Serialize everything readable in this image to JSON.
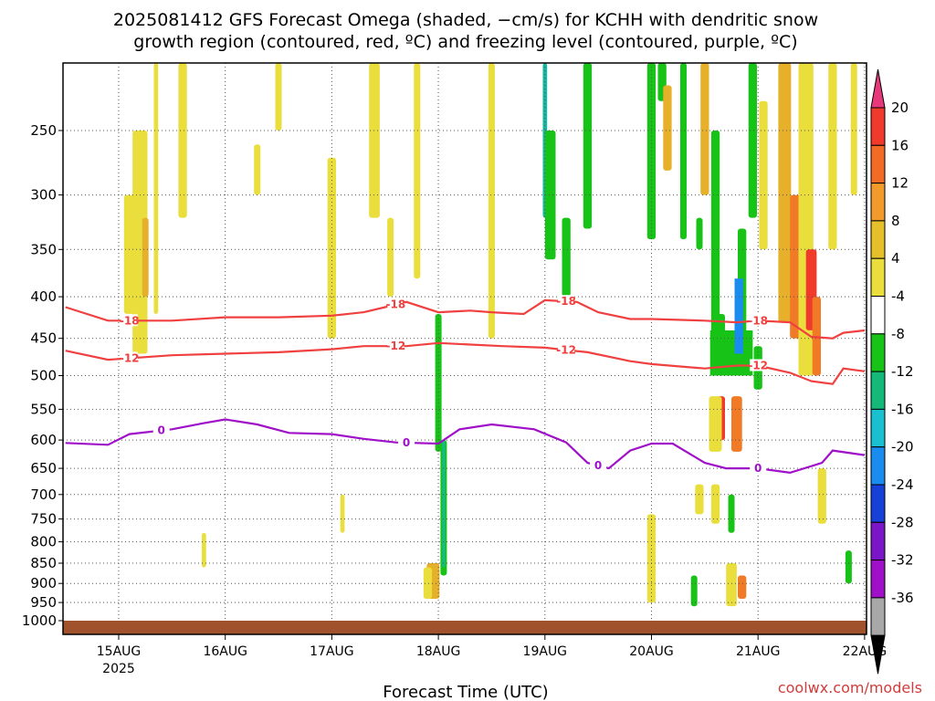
{
  "title_line1": "2025081412 GFS Forecast Omega (shaded, −cm/s) for KCHH with dendritic snow",
  "title_line2": "growth region (contoured, red, ºC) and freezing level (contoured, purple, ºC)",
  "credit": "coolwx.com/models",
  "chart_data": {
    "type": "heatmap",
    "title": "2025081412 GFS Forecast Omega (shaded, −cm/s) for KCHH with dendritic snow growth region (contoured, red, ºC) and freezing level (contoured, purple, ºC)",
    "xlabel": "Forecast Time (UTC)",
    "ylabel": "",
    "x_ticks": [
      "15AUG",
      "16AUG",
      "17AUG",
      "18AUG",
      "19AUG",
      "20AUG",
      "21AUG",
      "22AUG"
    ],
    "x_year_label": "2025",
    "y_ticks": [
      250,
      300,
      350,
      400,
      450,
      500,
      550,
      600,
      650,
      700,
      750,
      800,
      850,
      900,
      950,
      1000
    ],
    "ylim": [
      1025,
      200
    ],
    "grid": true,
    "colorbar": {
      "ticks": [
        20,
        16,
        12,
        8,
        4,
        -4,
        -8,
        -12,
        -16,
        -20,
        -24,
        -28,
        -32,
        -36
      ],
      "colors": [
        "#e8387c",
        "#f03a2c",
        "#f26b24",
        "#f29a2c",
        "#e6c02a",
        "#eade3c",
        "#ffffff",
        "#16c316",
        "#14b878",
        "#1ac0d0",
        "#1a8cf0",
        "#1640d8",
        "#7a16c8",
        "#a010c8",
        "#a8a8a8",
        "#000000"
      ]
    },
    "contours": [
      {
        "name": "-18",
        "color": "#f04040",
        "series_label": "dendritic snow growth region",
        "x": [
          14.5,
          14.9,
          15.5,
          16.0,
          16.5,
          17.0,
          17.3,
          17.5,
          17.7,
          18.0,
          18.3,
          18.5,
          18.8,
          19.0,
          19.3,
          19.5,
          19.8,
          20.0,
          20.5,
          20.8,
          21.0,
          21.3,
          21.5,
          21.7,
          21.8,
          22.0
        ],
        "p": [
          412,
          428,
          428,
          424,
          424,
          422,
          418,
          412,
          406,
          418,
          416,
          418,
          420,
          404,
          406,
          418,
          426,
          426,
          428,
          430,
          428,
          430,
          448,
          450,
          443,
          440
        ]
      },
      {
        "name": "-12",
        "color": "#f04040",
        "series_label": "dendritic snow growth region",
        "x": [
          14.5,
          14.9,
          15.5,
          16.0,
          16.5,
          17.0,
          17.3,
          17.7,
          18.0,
          18.3,
          18.6,
          19.0,
          19.4,
          19.8,
          20.0,
          20.5,
          20.8,
          21.0,
          21.3,
          21.5,
          21.7,
          21.8,
          22.0
        ],
        "p": [
          466,
          478,
          472,
          470,
          468,
          464,
          460,
          460,
          456,
          458,
          460,
          462,
          468,
          480,
          484,
          490,
          486,
          486,
          496,
          508,
          512,
          490,
          494
        ]
      },
      {
        "name": "0",
        "color": "#a010c8",
        "series_label": "freezing level",
        "x": [
          14.5,
          14.9,
          15.1,
          15.5,
          15.8,
          16.0,
          16.3,
          16.6,
          17.0,
          17.3,
          17.6,
          18.0,
          18.2,
          18.5,
          18.9,
          19.2,
          19.4,
          19.6,
          19.8,
          20.0,
          20.2,
          20.5,
          20.7,
          21.0,
          21.3,
          21.6,
          21.7,
          22.0
        ],
        "p": [
          605,
          608,
          590,
          582,
          572,
          566,
          574,
          588,
          590,
          598,
          604,
          606,
          582,
          574,
          582,
          604,
          640,
          650,
          618,
          606,
          606,
          640,
          650,
          650,
          658,
          640,
          618,
          626
        ]
      }
    ],
    "shading_note": "Vertical columns of upward (yellow/orange/red) and downward (green/cyan/blue) omega across the period; strongest upward motion near 21.5 AUG aloft (300-450 hPa)."
  }
}
